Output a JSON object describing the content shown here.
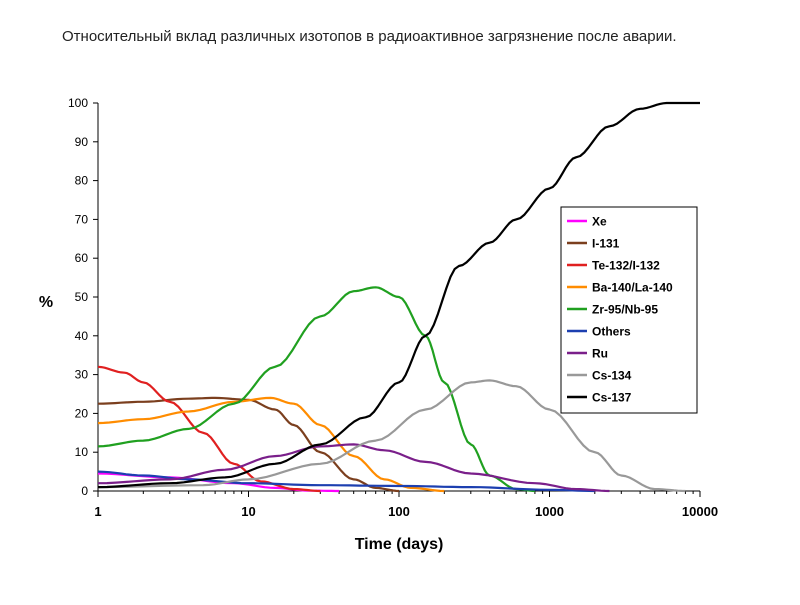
{
  "page_title": "Относительный вклад различных изотопов в радиоактивное загрязнение после аварии.",
  "chart_data": {
    "type": "line",
    "title": "Относительный вклад различных изотопов в радиоактивное загрязнение после аварии.",
    "xlabel": "Time (days)",
    "ylabel": "%",
    "x_scale": "log",
    "xlim": [
      1,
      10000
    ],
    "ylim": [
      0,
      100
    ],
    "x_ticks": [
      1,
      10,
      100,
      1000,
      10000
    ],
    "x_tick_labels": [
      "1",
      "10",
      "100",
      "1000",
      "10000"
    ],
    "y_ticks": [
      0,
      10,
      20,
      30,
      40,
      50,
      60,
      70,
      80,
      90,
      100
    ],
    "y_tick_labels": [
      "0",
      "10",
      "20",
      "30",
      "40",
      "50",
      "60",
      "70",
      "80",
      "90",
      "100"
    ],
    "grid": false,
    "legend_position": "right",
    "series": [
      {
        "name": "Xe",
        "color": "#ff00ff",
        "points": [
          [
            1,
            4.5
          ],
          [
            3,
            3.5
          ],
          [
            8,
            2
          ],
          [
            15,
            0.8
          ],
          [
            25,
            0.1
          ],
          [
            40,
            0
          ]
        ]
      },
      {
        "name": "I-131",
        "color": "#7b3f1e",
        "points": [
          [
            1,
            22.5
          ],
          [
            2,
            23
          ],
          [
            4,
            23.8
          ],
          [
            6,
            24
          ],
          [
            10,
            23.5
          ],
          [
            15,
            21
          ],
          [
            20,
            17
          ],
          [
            30,
            10
          ],
          [
            50,
            3
          ],
          [
            70,
            0.8
          ],
          [
            100,
            0
          ]
        ]
      },
      {
        "name": "Te-132/I-132",
        "color": "#e02020",
        "points": [
          [
            1,
            32
          ],
          [
            1.5,
            30.5
          ],
          [
            2,
            28
          ],
          [
            3,
            23
          ],
          [
            5,
            15
          ],
          [
            8,
            7
          ],
          [
            12,
            2.5
          ],
          [
            20,
            0.5
          ],
          [
            30,
            0
          ]
        ]
      },
      {
        "name": "Ba-140/La-140",
        "color": "#ff8c00",
        "points": [
          [
            1,
            17.5
          ],
          [
            2,
            18.5
          ],
          [
            4,
            20.5
          ],
          [
            8,
            23
          ],
          [
            14,
            24
          ],
          [
            20,
            22.5
          ],
          [
            30,
            17
          ],
          [
            50,
            9
          ],
          [
            80,
            3
          ],
          [
            120,
            0.8
          ],
          [
            200,
            0
          ]
        ]
      },
      {
        "name": "Zr-95/Nb-95",
        "color": "#20a020",
        "points": [
          [
            1,
            11.5
          ],
          [
            2,
            13
          ],
          [
            4,
            16
          ],
          [
            8,
            22.5
          ],
          [
            15,
            32
          ],
          [
            30,
            45
          ],
          [
            50,
            51.5
          ],
          [
            70,
            52.5
          ],
          [
            100,
            50
          ],
          [
            150,
            40
          ],
          [
            200,
            28
          ],
          [
            300,
            12
          ],
          [
            400,
            4
          ],
          [
            600,
            0.5
          ],
          [
            800,
            0
          ]
        ]
      },
      {
        "name": "Others",
        "color": "#1c3fb0",
        "points": [
          [
            1,
            5
          ],
          [
            2,
            4
          ],
          [
            4,
            3
          ],
          [
            10,
            2
          ],
          [
            30,
            1.5
          ],
          [
            100,
            1.3
          ],
          [
            300,
            1
          ],
          [
            1000,
            0.3
          ],
          [
            2000,
            0
          ]
        ]
      },
      {
        "name": "Ru",
        "color": "#7a1f8a",
        "points": [
          [
            1,
            2
          ],
          [
            3,
            3
          ],
          [
            7,
            5.5
          ],
          [
            15,
            9
          ],
          [
            30,
            11.5
          ],
          [
            50,
            12
          ],
          [
            80,
            10.5
          ],
          [
            150,
            7.5
          ],
          [
            300,
            4.5
          ],
          [
            800,
            2
          ],
          [
            1500,
            0.5
          ],
          [
            2500,
            0
          ]
        ]
      },
      {
        "name": "Cs-134",
        "color": "#999999",
        "points": [
          [
            1,
            1
          ],
          [
            5,
            1.5
          ],
          [
            10,
            3
          ],
          [
            30,
            7
          ],
          [
            70,
            13
          ],
          [
            150,
            21
          ],
          [
            300,
            28
          ],
          [
            400,
            28.5
          ],
          [
            600,
            27
          ],
          [
            1000,
            21
          ],
          [
            2000,
            10
          ],
          [
            3000,
            4
          ],
          [
            5000,
            0.5
          ],
          [
            8000,
            0
          ]
        ]
      },
      {
        "name": "Cs-137",
        "color": "#000000",
        "points": [
          [
            1,
            1
          ],
          [
            3,
            2
          ],
          [
            7,
            3.5
          ],
          [
            15,
            7
          ],
          [
            30,
            12
          ],
          [
            60,
            19
          ],
          [
            100,
            28
          ],
          [
            150,
            40
          ],
          [
            250,
            58
          ],
          [
            400,
            64
          ],
          [
            600,
            70
          ],
          [
            1000,
            78
          ],
          [
            1500,
            86
          ],
          [
            2500,
            94
          ],
          [
            4000,
            98.5
          ],
          [
            6000,
            100
          ],
          [
            10000,
            100
          ]
        ]
      }
    ]
  }
}
